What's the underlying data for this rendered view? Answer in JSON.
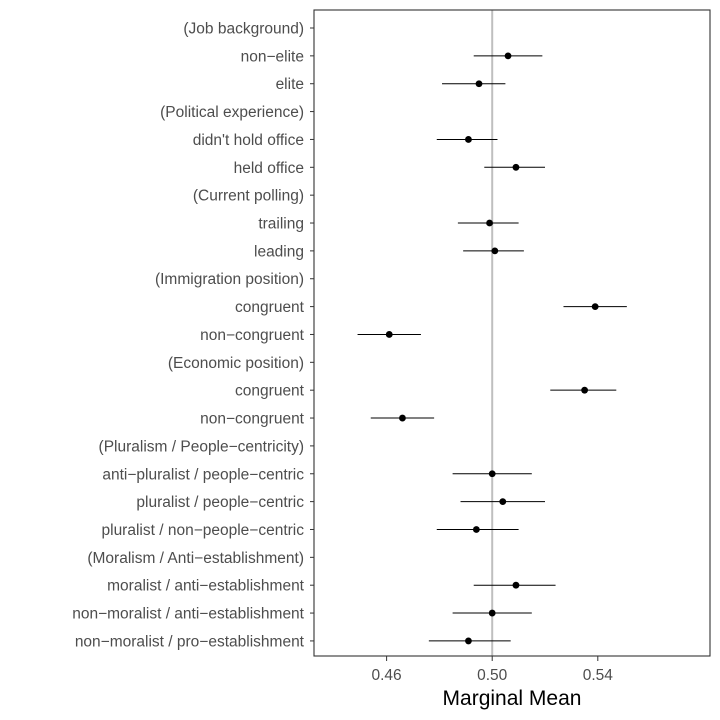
{
  "chart_data": {
    "type": "scatter",
    "orientation": "horizontal",
    "title": "",
    "xlabel": "Marginal Mean",
    "ylabel": "",
    "xlim": [
      0.4325,
      0.5825
    ],
    "xticks": [
      0.46,
      0.5,
      0.54
    ],
    "xtick_labels": [
      "0.46",
      "0.50",
      "0.54"
    ],
    "reference_line": 0.5,
    "grid": false,
    "legend": "none",
    "colors": {
      "point": "#000000",
      "errorbar": "#000000",
      "reference": "#bfbfbf",
      "border": "#333333"
    },
    "rows": [
      {
        "label": "(Job background)",
        "header": true
      },
      {
        "label": "non−elite",
        "estimate": 0.506,
        "lower": 0.493,
        "upper": 0.519
      },
      {
        "label": "elite",
        "estimate": 0.495,
        "lower": 0.481,
        "upper": 0.505
      },
      {
        "label": "(Political experience)",
        "header": true
      },
      {
        "label": "didn't hold office",
        "estimate": 0.491,
        "lower": 0.479,
        "upper": 0.502
      },
      {
        "label": "held office",
        "estimate": 0.509,
        "lower": 0.497,
        "upper": 0.52
      },
      {
        "label": "(Current polling)",
        "header": true
      },
      {
        "label": "trailing",
        "estimate": 0.499,
        "lower": 0.487,
        "upper": 0.51
      },
      {
        "label": "leading",
        "estimate": 0.501,
        "lower": 0.489,
        "upper": 0.512
      },
      {
        "label": "(Immigration position)",
        "header": true
      },
      {
        "label": "congruent ",
        "estimate": 0.539,
        "lower": 0.527,
        "upper": 0.551
      },
      {
        "label": "non−congruent ",
        "estimate": 0.461,
        "lower": 0.449,
        "upper": 0.473
      },
      {
        "label": "(Economic position)",
        "header": true
      },
      {
        "label": "congruent",
        "estimate": 0.535,
        "lower": 0.522,
        "upper": 0.547
      },
      {
        "label": "non−congruent",
        "estimate": 0.466,
        "lower": 0.454,
        "upper": 0.478
      },
      {
        "label": "(Pluralism / People−centricity)",
        "header": true
      },
      {
        "label": "anti−pluralist / people−centric",
        "estimate": 0.5,
        "lower": 0.485,
        "upper": 0.515
      },
      {
        "label": "pluralist / people−centric",
        "estimate": 0.504,
        "lower": 0.488,
        "upper": 0.52
      },
      {
        "label": "pluralist / non−people−centric",
        "estimate": 0.494,
        "lower": 0.479,
        "upper": 0.51
      },
      {
        "label": "(Moralism / Anti−establishment)",
        "header": true
      },
      {
        "label": "moralist / anti−establishment",
        "estimate": 0.509,
        "lower": 0.493,
        "upper": 0.524
      },
      {
        "label": "non−moralist / anti−establishment",
        "estimate": 0.5,
        "lower": 0.485,
        "upper": 0.515
      },
      {
        "label": "non−moralist / pro−establishment",
        "estimate": 0.491,
        "lower": 0.476,
        "upper": 0.507
      }
    ]
  }
}
